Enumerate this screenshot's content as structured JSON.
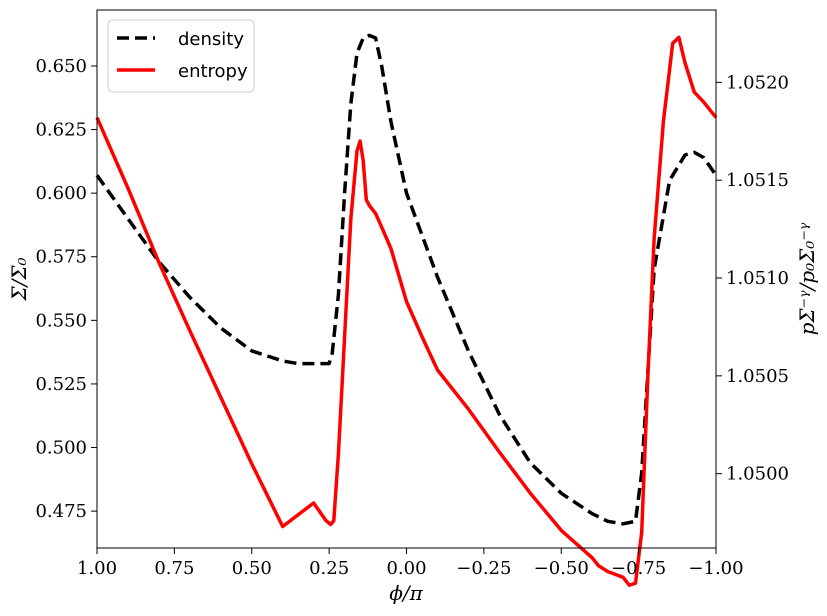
{
  "chart_data": {
    "type": "line",
    "xlabel": "ϕ/π",
    "ylabel_left": "Σ/Σ₀",
    "ylabel_right": "pΣ⁻ᵞ/p₀Σ₀⁻ᵞ",
    "x_reversed": true,
    "xlim": [
      1.0,
      -1.0
    ],
    "ylim_left": [
      0.4605,
      0.672
    ],
    "ylim_right": [
      1.04962,
      1.05237
    ],
    "x_ticks": [
      1.0,
      0.75,
      0.5,
      0.25,
      0.0,
      -0.25,
      -0.5,
      -0.75,
      -1.0
    ],
    "x_tick_labels": [
      "1.00",
      "0.75",
      "0.50",
      "0.25",
      "0.00",
      "−0.25",
      "−0.50",
      "−0.75",
      "−1.00"
    ],
    "y_left_ticks": [
      0.475,
      0.5,
      0.525,
      0.55,
      0.575,
      0.6,
      0.625,
      0.65
    ],
    "y_left_tick_labels": [
      "0.475",
      "0.500",
      "0.525",
      "0.550",
      "0.575",
      "0.600",
      "0.625",
      "0.650"
    ],
    "y_right_ticks": [
      1.05,
      1.0505,
      1.051,
      1.0515,
      1.052
    ],
    "y_right_tick_labels": [
      "1.0500",
      "1.0505",
      "1.0510",
      "1.0515",
      "1.0520"
    ],
    "legend_position": "top-left",
    "grid": false,
    "series": [
      {
        "name": "density",
        "axis": "left",
        "color": "#000000",
        "style": "dashed",
        "x": [
          1.0,
          0.9,
          0.8,
          0.7,
          0.6,
          0.5,
          0.4,
          0.35,
          0.3,
          0.25,
          0.24,
          0.22,
          0.2,
          0.18,
          0.16,
          0.14,
          0.12,
          0.1,
          0.08,
          0.05,
          0.0,
          -0.1,
          -0.2,
          -0.3,
          -0.4,
          -0.5,
          -0.6,
          -0.65,
          -0.7,
          -0.74,
          -0.76,
          -0.78,
          -0.8,
          -0.85,
          -0.9,
          -0.93,
          -0.96,
          -1.0
        ],
        "y": [
          0.607,
          0.59,
          0.573,
          0.559,
          0.547,
          0.538,
          0.534,
          0.533,
          0.533,
          0.533,
          0.537,
          0.56,
          0.6,
          0.635,
          0.655,
          0.661,
          0.662,
          0.661,
          0.65,
          0.628,
          0.6,
          0.567,
          0.538,
          0.513,
          0.494,
          0.482,
          0.474,
          0.471,
          0.47,
          0.471,
          0.49,
          0.53,
          0.57,
          0.605,
          0.615,
          0.616,
          0.614,
          0.607
        ]
      },
      {
        "name": "entropy",
        "axis": "right",
        "color": "#ff0000",
        "style": "solid",
        "x": [
          1.0,
          0.9,
          0.8,
          0.7,
          0.6,
          0.5,
          0.4,
          0.3,
          0.26,
          0.245,
          0.235,
          0.22,
          0.2,
          0.18,
          0.16,
          0.15,
          0.14,
          0.13,
          0.12,
          0.1,
          0.08,
          0.05,
          0.0,
          -0.05,
          -0.1,
          -0.2,
          -0.3,
          -0.4,
          -0.5,
          -0.55,
          -0.6,
          -0.62,
          -0.65,
          -0.7,
          -0.72,
          -0.74,
          -0.76,
          -0.78,
          -0.8,
          -0.83,
          -0.86,
          -0.88,
          -0.9,
          -0.93,
          -0.96,
          -1.0
        ],
        "y": [
          1.05182,
          1.05146,
          1.05108,
          1.05073,
          1.05039,
          1.05005,
          1.04973,
          1.04985,
          1.04976,
          1.04974,
          1.04976,
          1.0501,
          1.0507,
          1.0513,
          1.05165,
          1.0517,
          1.0516,
          1.0514,
          1.05137,
          1.05133,
          1.05126,
          1.05115,
          1.05088,
          1.0507,
          1.05053,
          1.05033,
          1.05011,
          1.0499,
          1.04971,
          1.04964,
          1.04957,
          1.04953,
          1.0495,
          1.04947,
          1.04943,
          1.04944,
          1.0497,
          1.0505,
          1.0512,
          1.0518,
          1.0522,
          1.05223,
          1.0521,
          1.05195,
          1.0519,
          1.05182
        ]
      }
    ]
  }
}
